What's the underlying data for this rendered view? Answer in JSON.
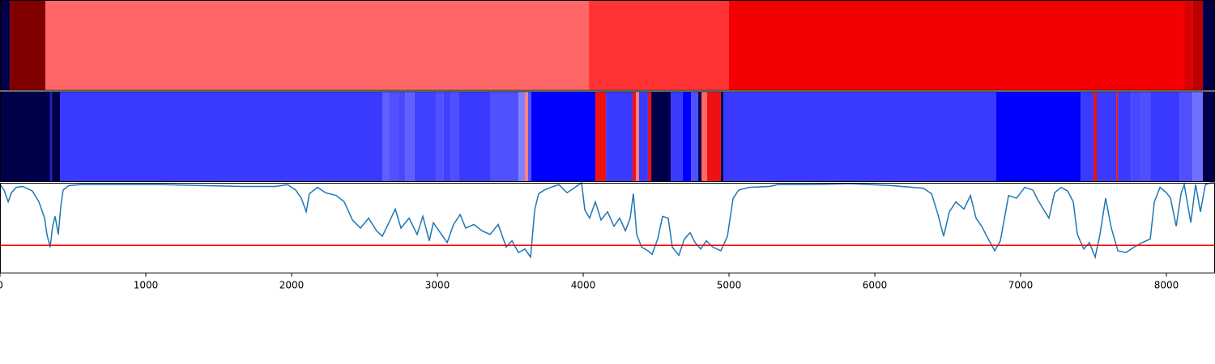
{
  "chart_data": [
    {
      "type": "segments",
      "xlim": [
        0,
        8333
      ],
      "segments": [
        {
          "start": 0,
          "end": 67,
          "color": "#00004a"
        },
        {
          "start": 67,
          "end": 311,
          "color": "#800000"
        },
        {
          "start": 311,
          "end": 4039,
          "color": "#ff6666"
        },
        {
          "start": 4039,
          "end": 5000,
          "color": "#ff3333"
        },
        {
          "start": 5000,
          "end": 8122,
          "color": "#f50000"
        },
        {
          "start": 8122,
          "end": 8178,
          "color": "#dd0000"
        },
        {
          "start": 8178,
          "end": 8250,
          "color": "#bb0000"
        },
        {
          "start": 8250,
          "end": 8333,
          "color": "#00004a"
        }
      ]
    },
    {
      "type": "segments",
      "xlim": [
        0,
        8333
      ],
      "segments": [
        {
          "start": 0,
          "end": 344,
          "color": "#00004a"
        },
        {
          "start": 344,
          "end": 356,
          "color": "#2222cc"
        },
        {
          "start": 356,
          "end": 411,
          "color": "#00004a"
        },
        {
          "start": 411,
          "end": 2622,
          "color": "#3a3aff"
        },
        {
          "start": 2622,
          "end": 2667,
          "color": "#6060ff"
        },
        {
          "start": 2667,
          "end": 2733,
          "color": "#5050ff"
        },
        {
          "start": 2733,
          "end": 2778,
          "color": "#4848ff"
        },
        {
          "start": 2778,
          "end": 2844,
          "color": "#6060ff"
        },
        {
          "start": 2844,
          "end": 2989,
          "color": "#4040ff"
        },
        {
          "start": 2989,
          "end": 3044,
          "color": "#5050ff"
        },
        {
          "start": 3044,
          "end": 3089,
          "color": "#4040ff"
        },
        {
          "start": 3089,
          "end": 3150,
          "color": "#5050ff"
        },
        {
          "start": 3150,
          "end": 3361,
          "color": "#3a3aff"
        },
        {
          "start": 3361,
          "end": 3556,
          "color": "#5050ff"
        },
        {
          "start": 3556,
          "end": 3600,
          "color": "#8080ff"
        },
        {
          "start": 3600,
          "end": 3622,
          "color": "#ff8080"
        },
        {
          "start": 3622,
          "end": 3644,
          "color": "#5050ff"
        },
        {
          "start": 3644,
          "end": 4083,
          "color": "#0000ff"
        },
        {
          "start": 4083,
          "end": 4156,
          "color": "#ee1111"
        },
        {
          "start": 4156,
          "end": 4339,
          "color": "#3a3aff"
        },
        {
          "start": 4339,
          "end": 4361,
          "color": "#ee1111"
        },
        {
          "start": 4361,
          "end": 4383,
          "color": "#ff8080"
        },
        {
          "start": 4383,
          "end": 4444,
          "color": "#3a3aff"
        },
        {
          "start": 4444,
          "end": 4467,
          "color": "#ee1111"
        },
        {
          "start": 4467,
          "end": 4600,
          "color": "#00004a"
        },
        {
          "start": 4600,
          "end": 4683,
          "color": "#3a3aff"
        },
        {
          "start": 4683,
          "end": 4739,
          "color": "#0000ff"
        },
        {
          "start": 4739,
          "end": 4789,
          "color": "#5050ff"
        },
        {
          "start": 4789,
          "end": 4811,
          "color": "#00004a"
        },
        {
          "start": 4811,
          "end": 4850,
          "color": "#ff6666"
        },
        {
          "start": 4850,
          "end": 4944,
          "color": "#ee1111"
        },
        {
          "start": 4944,
          "end": 4961,
          "color": "#00004a"
        },
        {
          "start": 4961,
          "end": 6833,
          "color": "#3a3aff"
        },
        {
          "start": 6833,
          "end": 7411,
          "color": "#0000ff"
        },
        {
          "start": 7411,
          "end": 7500,
          "color": "#3a3aff"
        },
        {
          "start": 7500,
          "end": 7522,
          "color": "#ee1111"
        },
        {
          "start": 7522,
          "end": 7656,
          "color": "#3a3aff"
        },
        {
          "start": 7656,
          "end": 7667,
          "color": "#ee1111"
        },
        {
          "start": 7667,
          "end": 7756,
          "color": "#3a3aff"
        },
        {
          "start": 7756,
          "end": 7822,
          "color": "#4848ff"
        },
        {
          "start": 7822,
          "end": 7889,
          "color": "#5050ff"
        },
        {
          "start": 7889,
          "end": 8089,
          "color": "#3a3aff"
        },
        {
          "start": 8089,
          "end": 8178,
          "color": "#5050ff"
        },
        {
          "start": 8178,
          "end": 8250,
          "color": "#7070ff"
        },
        {
          "start": 8250,
          "end": 8333,
          "color": "#00004a"
        }
      ]
    },
    {
      "type": "line",
      "xlim": [
        0,
        8333
      ],
      "ylim": [
        0,
        1
      ],
      "color": "#1f77b4",
      "xticks": [
        0,
        1000,
        2000,
        3000,
        4000,
        5000,
        6000,
        7000,
        8000
      ],
      "threshold": {
        "value": 0.31,
        "color": "#ff0000"
      },
      "x": [
        0,
        28,
        56,
        78,
        111,
        156,
        222,
        267,
        306,
        322,
        344,
        361,
        378,
        400,
        417,
        433,
        472,
        556,
        833,
        1111,
        1389,
        1667,
        1889,
        1972,
        2028,
        2067,
        2100,
        2122,
        2178,
        2233,
        2306,
        2361,
        2417,
        2472,
        2528,
        2583,
        2622,
        2667,
        2711,
        2750,
        2806,
        2861,
        2900,
        2944,
        2972,
        3028,
        3067,
        3111,
        3156,
        3194,
        3250,
        3306,
        3361,
        3417,
        3472,
        3511,
        3556,
        3600,
        3639,
        3667,
        3694,
        3733,
        3778,
        3833,
        3889,
        3944,
        3989,
        4011,
        4044,
        4083,
        4122,
        4167,
        4211,
        4250,
        4289,
        4322,
        4344,
        4367,
        4400,
        4444,
        4472,
        4511,
        4544,
        4583,
        4611,
        4656,
        4694,
        4733,
        4767,
        4806,
        4844,
        4889,
        4944,
        4989,
        5028,
        5067,
        5139,
        5278,
        5333,
        5556,
        5833,
        6111,
        6333,
        6389,
        6433,
        6472,
        6511,
        6556,
        6611,
        6656,
        6694,
        6733,
        6778,
        6822,
        6861,
        6889,
        6917,
        6972,
        7028,
        7083,
        7122,
        7167,
        7194,
        7233,
        7278,
        7322,
        7361,
        7389,
        7433,
        7472,
        7511,
        7544,
        7583,
        7622,
        7667,
        7722,
        7778,
        7833,
        7889,
        7917,
        7956,
        8000,
        8028,
        8067,
        8100,
        8122,
        8167,
        8200,
        8233,
        8267,
        8306,
        8333
      ],
      "values": [
        0.98,
        0.92,
        0.79,
        0.89,
        0.95,
        0.96,
        0.91,
        0.79,
        0.61,
        0.43,
        0.29,
        0.52,
        0.63,
        0.43,
        0.74,
        0.92,
        0.97,
        0.98,
        0.98,
        0.98,
        0.97,
        0.96,
        0.96,
        0.98,
        0.92,
        0.83,
        0.68,
        0.88,
        0.95,
        0.89,
        0.86,
        0.79,
        0.59,
        0.5,
        0.61,
        0.47,
        0.41,
        0.56,
        0.71,
        0.5,
        0.61,
        0.43,
        0.63,
        0.36,
        0.56,
        0.43,
        0.34,
        0.54,
        0.65,
        0.5,
        0.54,
        0.47,
        0.43,
        0.54,
        0.29,
        0.36,
        0.23,
        0.27,
        0.18,
        0.7,
        0.88,
        0.92,
        0.95,
        0.98,
        0.89,
        0.95,
        1.0,
        0.7,
        0.61,
        0.79,
        0.59,
        0.68,
        0.52,
        0.61,
        0.47,
        0.61,
        0.88,
        0.43,
        0.29,
        0.25,
        0.21,
        0.38,
        0.63,
        0.61,
        0.29,
        0.2,
        0.38,
        0.45,
        0.34,
        0.27,
        0.36,
        0.29,
        0.25,
        0.41,
        0.83,
        0.92,
        0.95,
        0.96,
        0.98,
        0.98,
        0.99,
        0.97,
        0.94,
        0.88,
        0.65,
        0.41,
        0.68,
        0.79,
        0.71,
        0.86,
        0.61,
        0.52,
        0.38,
        0.25,
        0.36,
        0.61,
        0.86,
        0.83,
        0.95,
        0.92,
        0.8,
        0.68,
        0.61,
        0.89,
        0.95,
        0.91,
        0.79,
        0.43,
        0.27,
        0.34,
        0.18,
        0.43,
        0.83,
        0.5,
        0.25,
        0.23,
        0.29,
        0.34,
        0.38,
        0.79,
        0.95,
        0.89,
        0.83,
        0.52,
        0.88,
        0.98,
        0.56,
        0.98,
        0.68,
        0.98,
        1.0,
        1.0
      ]
    }
  ]
}
